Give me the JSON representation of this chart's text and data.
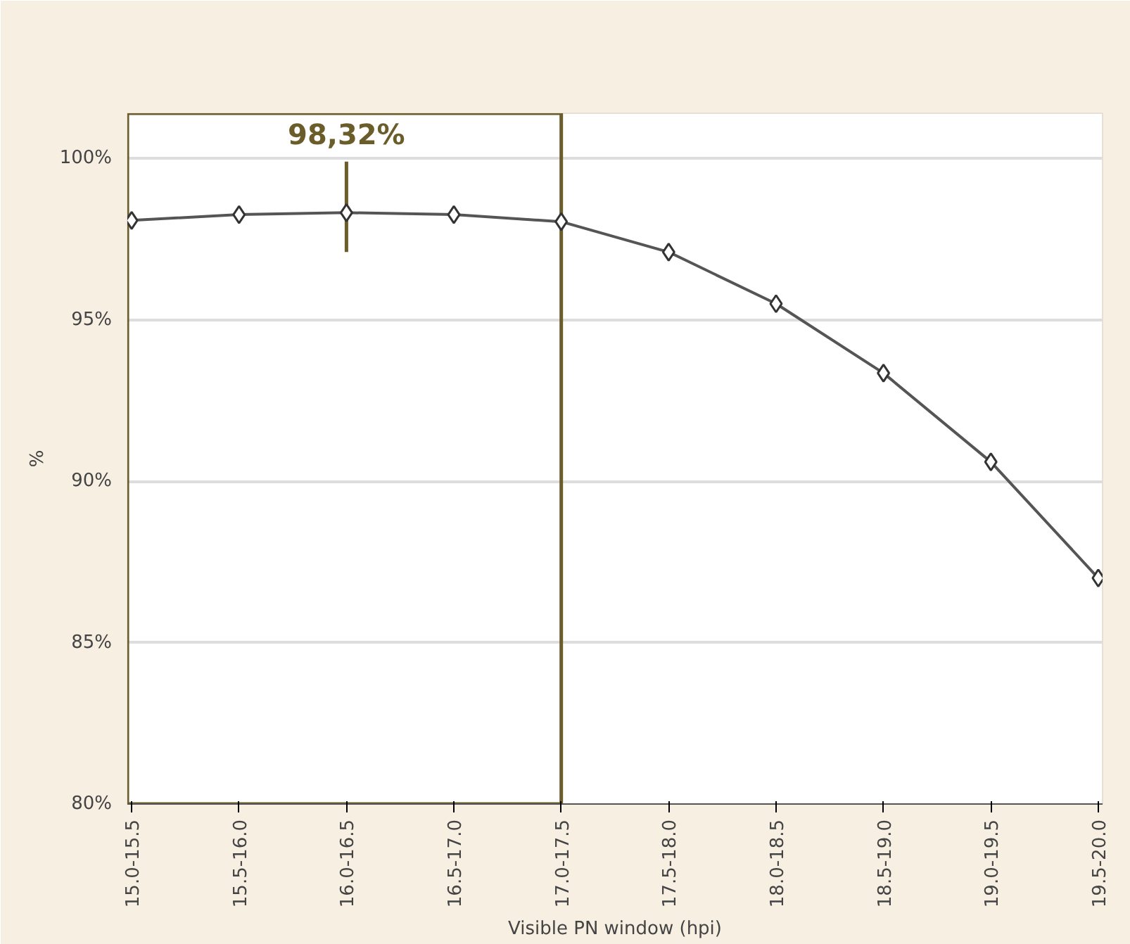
{
  "chart_data": {
    "type": "line",
    "xlabel": "Visible PN window (hpi)",
    "ylabel": "%",
    "categories": [
      "15.0-15.5",
      "15.5-16.0",
      "16.0-16.5",
      "16.5-17.0",
      "17.0-17.5",
      "17.5-18.0",
      "18.0-18.5",
      "18.5-19.0",
      "19.0-19.5",
      "19.5-20.0"
    ],
    "series": [
      {
        "color": "#555555",
        "values": [
          98.08,
          98.26,
          98.32,
          98.26,
          98.04,
          97.1,
          95.5,
          93.35,
          90.6,
          87.0
        ],
        "errors": [
          null,
          null,
          [
            97.1,
            99.9
          ],
          null,
          null,
          null,
          null,
          null,
          null,
          null
        ]
      }
    ],
    "ylim": [
      80,
      101.4
    ],
    "yticks": [
      {
        "value": 80,
        "label": "80%"
      },
      {
        "value": 85,
        "label": "85%"
      },
      {
        "value": 90,
        "label": "90%"
      },
      {
        "value": 95,
        "label": "95%"
      },
      {
        "value": 100,
        "label": "100%"
      }
    ],
    "grid": "y",
    "marker": "diamond",
    "line_style": "solid",
    "annotations": [
      "98,32%"
    ]
  }
}
